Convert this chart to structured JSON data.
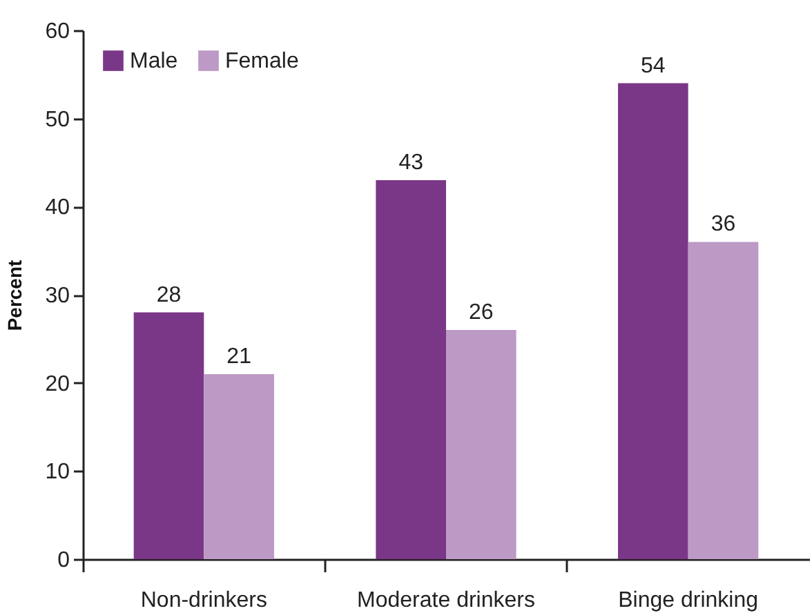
{
  "chart_data": {
    "type": "bar",
    "ylabel": "Percent",
    "categories": [
      "Non-drinkers",
      "Moderate drinkers",
      "Binge drinking"
    ],
    "series": [
      {
        "name": "Male",
        "color": "#7b3787",
        "values": [
          28,
          43,
          54
        ]
      },
      {
        "name": "Female",
        "color": "#bd99c5",
        "values": [
          21,
          26,
          36
        ]
      }
    ],
    "ylim": [
      0,
      60
    ],
    "yticks": [
      0,
      10,
      20,
      30,
      40,
      50,
      60
    ],
    "grid": false,
    "legend": "top left",
    "data_labels": true
  }
}
